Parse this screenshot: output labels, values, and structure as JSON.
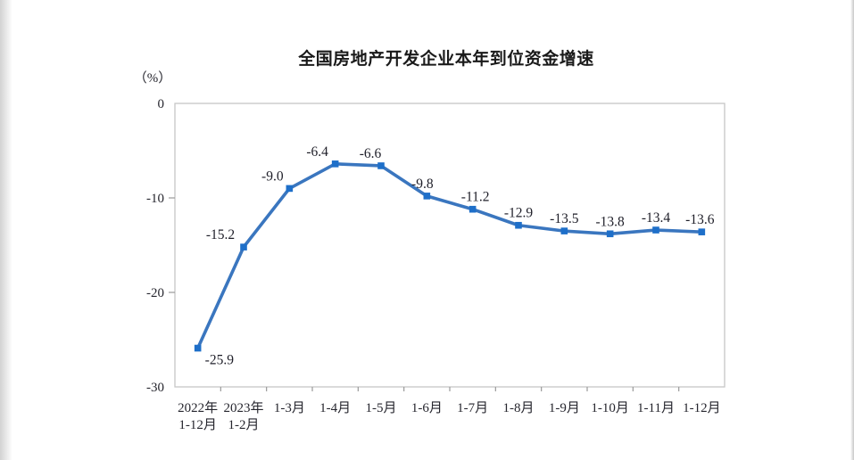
{
  "page": {
    "background_color": "#ffffff"
  },
  "chart_data": {
    "type": "line",
    "title": "全国房地产开发企业本年到位资金增速",
    "unit_label": "（%）",
    "categories": [
      "2022年1-12月",
      "2023年1-2月",
      "1-3月",
      "1-4月",
      "1-5月",
      "1-6月",
      "1-7月",
      "1-8月",
      "1-9月",
      "1-10月",
      "1-11月",
      "1-12月"
    ],
    "category_lines": [
      [
        "2022年",
        "1-12月"
      ],
      [
        "2023年",
        "1-2月"
      ],
      [
        "1-3月"
      ],
      [
        "1-4月"
      ],
      [
        "1-5月"
      ],
      [
        "1-6月"
      ],
      [
        "1-7月"
      ],
      [
        "1-8月"
      ],
      [
        "1-9月"
      ],
      [
        "1-10月"
      ],
      [
        "1-11月"
      ],
      [
        "1-12月"
      ]
    ],
    "values": [
      -25.9,
      -15.2,
      -9.0,
      -6.4,
      -6.6,
      -9.8,
      -11.2,
      -12.9,
      -13.5,
      -13.8,
      -13.4,
      -13.6
    ],
    "value_labels": [
      "-25.9",
      "-15.2",
      "-9.0",
      "-6.4",
      "-6.6",
      "-9.8",
      "-11.2",
      "-12.9",
      "-13.5",
      "-13.8",
      "-13.4",
      "-13.6"
    ],
    "xlabel": "",
    "ylabel": "（%）",
    "ylim": [
      -30,
      0
    ],
    "yticks": [
      0,
      -10,
      -20,
      -30
    ],
    "ytick_labels": [
      "0",
      "-10",
      "-20",
      "-30"
    ],
    "grid": false,
    "legend": "none",
    "colors": {
      "line": "#3A76BF",
      "marker": "#1E6FC9",
      "plot_border": "#c6c6c6",
      "tick": "#9a9a9a",
      "text": "#26262e",
      "title_text": "#1a1a1a"
    }
  }
}
